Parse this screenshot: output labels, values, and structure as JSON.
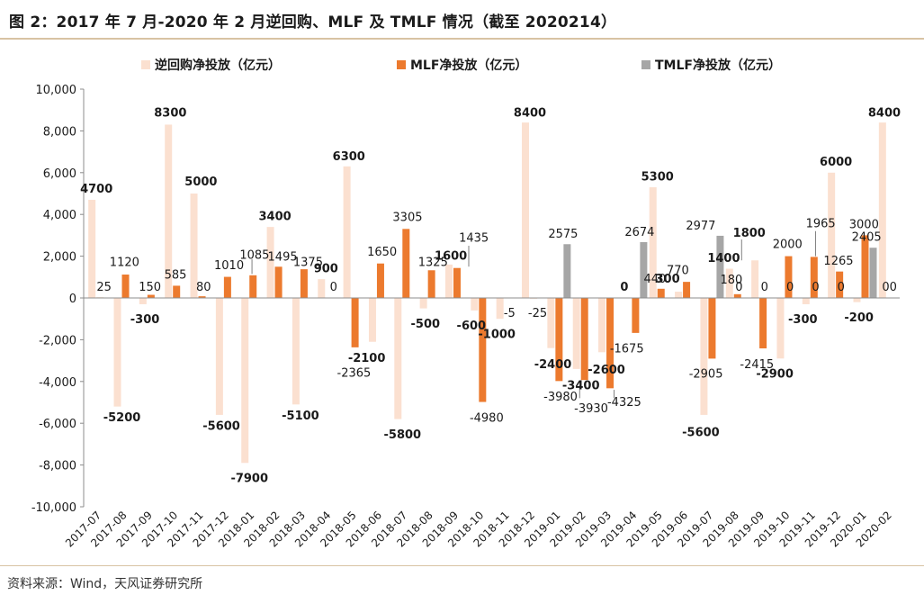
{
  "figure": {
    "title": "图 2：2017 年 7 月-2020 年 2 月逆回购、MLF 及 TMLF 情况（截至 2020214）",
    "source": "资料来源：Wind，天风证券研究所"
  },
  "chart_data": {
    "type": "bar",
    "categories": [
      "2017-07",
      "2017-08",
      "2017-09",
      "2017-10",
      "2017-11",
      "2017-12",
      "2018-01",
      "2018-02",
      "2018-03",
      "2018-04",
      "2018-05",
      "2018-06",
      "2018-07",
      "2018-08",
      "2018-09",
      "2018-10",
      "2018-11",
      "2018-12",
      "2019-01",
      "2019-02",
      "2019-03",
      "2019-04",
      "2019-05",
      "2019-06",
      "2019-07",
      "2019-08",
      "2019-09",
      "2019-10",
      "2019-11",
      "2019-12",
      "2020-01",
      "2020-02"
    ],
    "series": [
      {
        "name": "逆回购净投放（亿元）",
        "color": "#fbe0d0",
        "values": [
          4700,
          -5200,
          -300,
          8300,
          5000,
          -5600,
          -7900,
          3400,
          -5100,
          900,
          6300,
          -2100,
          -5800,
          -500,
          1600,
          -600,
          -1000,
          8400,
          -2400,
          -3400,
          -2600,
          0,
          5300,
          300,
          -5600,
          1400,
          1800,
          -2900,
          -300,
          6000,
          -200,
          8400
        ]
      },
      {
        "name": "MLF净投放（亿元）",
        "color": "#ec7a2e",
        "values": [
          25,
          1120,
          150,
          585,
          80,
          1010,
          1085,
          1495,
          1375,
          0,
          -2365,
          1650,
          3305,
          1325,
          1435,
          -4980,
          -5,
          -25,
          -3980,
          -3930,
          -4325,
          -1675,
          440,
          770,
          -2905,
          180,
          -2415,
          2000,
          1965,
          1265,
          3000,
          0
        ]
      },
      {
        "name": "TMLF净投放（亿元）",
        "color": "#a6a6a6",
        "values": [
          null,
          null,
          null,
          null,
          null,
          null,
          null,
          null,
          null,
          null,
          null,
          null,
          null,
          null,
          null,
          null,
          null,
          null,
          2575,
          null,
          null,
          2674,
          null,
          null,
          2977,
          null,
          0,
          0,
          0,
          0,
          2405,
          0
        ]
      }
    ],
    "ylim": [
      -10000,
      10000
    ],
    "yticks": [
      "10,000",
      "8,000",
      "6,000",
      "4,000",
      "2,000",
      "0",
      "-2,000",
      "-4,000",
      "-6,000",
      "-8,000",
      "-10,000"
    ],
    "legend_position": "top",
    "grid": false,
    "data_labels": [
      {
        "text": "4700",
        "bold": true,
        "cat": 0,
        "val": 5250
      },
      {
        "text": "25",
        "bold": false,
        "cat": 0.3,
        "val": 550
      },
      {
        "text": "1120",
        "bold": false,
        "cat": 1.1,
        "val": 1750
      },
      {
        "text": "-5200",
        "bold": true,
        "cat": 1,
        "val": -5700
      },
      {
        "text": "150",
        "bold": false,
        "cat": 2.1,
        "val": 550
      },
      {
        "text": "-300",
        "bold": true,
        "cat": 1.9,
        "val": -1000
      },
      {
        "text": "8300",
        "bold": true,
        "cat": 2.9,
        "val": 8900
      },
      {
        "text": "585",
        "bold": false,
        "cat": 3.1,
        "val": 1150
      },
      {
        "text": "5000",
        "bold": true,
        "cat": 4.1,
        "val": 5600
      },
      {
        "text": "80",
        "bold": false,
        "cat": 4.2,
        "val": 550
      },
      {
        "text": "1010",
        "bold": false,
        "cat": 5.2,
        "val": 1600
      },
      {
        "text": "-5600",
        "bold": true,
        "cat": 4.9,
        "val": -6100
      },
      {
        "text": "1085",
        "bold": false,
        "cat": 6.2,
        "val": 2100
      },
      {
        "text": "-7900",
        "bold": true,
        "cat": 6,
        "val": -8600
      },
      {
        "text": "3400",
        "bold": true,
        "cat": 7,
        "val": 3950
      },
      {
        "text": "1495",
        "bold": false,
        "cat": 7.3,
        "val": 2000
      },
      {
        "text": "1375",
        "bold": false,
        "cat": 8.3,
        "val": 1750
      },
      {
        "text": "-5100",
        "bold": true,
        "cat": 8,
        "val": -5600
      },
      {
        "text": "900",
        "bold": true,
        "cat": 9,
        "val": 1450
      },
      {
        "text": "0",
        "bold": false,
        "cat": 9.3,
        "val": 550
      },
      {
        "text": "6300",
        "bold": true,
        "cat": 9.9,
        "val": 6800
      },
      {
        "text": "-2365",
        "bold": false,
        "cat": 10.1,
        "val": -3550
      },
      {
        "text": "-2100",
        "bold": true,
        "cat": 10.6,
        "val": -2850
      },
      {
        "text": "1650",
        "bold": false,
        "cat": 11.2,
        "val": 2250
      },
      {
        "text": "3305",
        "bold": false,
        "cat": 12.2,
        "val": 3900
      },
      {
        "text": "-5800",
        "bold": true,
        "cat": 12,
        "val": -6500
      },
      {
        "text": "1325",
        "bold": false,
        "cat": 13.2,
        "val": 1750
      },
      {
        "text": "-500",
        "bold": true,
        "cat": 12.9,
        "val": -1200
      },
      {
        "text": "1600",
        "bold": true,
        "cat": 13.9,
        "val": 2050
      },
      {
        "text": "1435",
        "bold": false,
        "cat": 14.8,
        "val": 2900
      },
      {
        "text": "-600",
        "bold": true,
        "cat": 14.7,
        "val": -1300
      },
      {
        "text": "-1000",
        "bold": true,
        "cat": 15.7,
        "val": -1700
      },
      {
        "text": "-4980",
        "bold": false,
        "cat": 15.3,
        "val": -5720
      },
      {
        "text": "-5",
        "bold": false,
        "cat": 16.2,
        "val": -700
      },
      {
        "text": "8400",
        "bold": true,
        "cat": 17,
        "val": 8900
      },
      {
        "text": "-25",
        "bold": false,
        "cat": 17.3,
        "val": -700
      },
      {
        "text": "2575",
        "bold": false,
        "cat": 18.3,
        "val": 3100
      },
      {
        "text": "-2400",
        "bold": true,
        "cat": 17.9,
        "val": -3150
      },
      {
        "text": "-3980",
        "bold": false,
        "cat": 18.2,
        "val": -4700
      },
      {
        "text": "-3400",
        "bold": true,
        "cat": 19,
        "val": -4150
      },
      {
        "text": "-3930",
        "bold": false,
        "cat": 19.4,
        "val": -5250
      },
      {
        "text": "-2600",
        "bold": true,
        "cat": 20,
        "val": -3400
      },
      {
        "text": "-4325",
        "bold": false,
        "cat": 20.7,
        "val": -4950
      },
      {
        "text": "0",
        "bold": true,
        "cat": 20.7,
        "val": 550
      },
      {
        "text": "-1675",
        "bold": false,
        "cat": 20.8,
        "val": -2400
      },
      {
        "text": "2674",
        "bold": false,
        "cat": 21.3,
        "val": 3200
      },
      {
        "text": "5300",
        "bold": true,
        "cat": 22,
        "val": 5850
      },
      {
        "text": "440",
        "bold": false,
        "cat": 21.9,
        "val": 950
      },
      {
        "text": "300",
        "bold": true,
        "cat": 22.4,
        "val": 950
      },
      {
        "text": "770",
        "bold": false,
        "cat": 22.8,
        "val": 1350
      },
      {
        "text": "2977",
        "bold": false,
        "cat": 23.7,
        "val": 3500
      },
      {
        "text": "-5600",
        "bold": true,
        "cat": 23.7,
        "val": -6400
      },
      {
        "text": "-2905",
        "bold": false,
        "cat": 23.9,
        "val": -3600
      },
      {
        "text": "1400",
        "bold": true,
        "cat": 24.6,
        "val": 1950
      },
      {
        "text": "180",
        "bold": false,
        "cat": 24.9,
        "val": 900
      },
      {
        "text": "0",
        "bold": false,
        "cat": 25.2,
        "val": 550
      },
      {
        "text": "1800",
        "bold": true,
        "cat": 25.6,
        "val": 3150
      },
      {
        "text": "-2415",
        "bold": false,
        "cat": 25.9,
        "val": -3150
      },
      {
        "text": "0",
        "bold": false,
        "cat": 26.2,
        "val": 550
      },
      {
        "text": "-2900",
        "bold": true,
        "cat": 26.6,
        "val": -3600
      },
      {
        "text": "2000",
        "bold": false,
        "cat": 27.1,
        "val": 2600
      },
      {
        "text": "0",
        "bold": false,
        "cat": 27.2,
        "val": 550
      },
      {
        "text": "-300",
        "bold": true,
        "cat": 27.7,
        "val": -1000
      },
      {
        "text": "1965",
        "bold": false,
        "cat": 28.4,
        "val": 3600
      },
      {
        "text": "0",
        "bold": false,
        "cat": 28.2,
        "val": 550
      },
      {
        "text": "6000",
        "bold": true,
        "cat": 29,
        "val": 6550
      },
      {
        "text": "1265",
        "bold": false,
        "cat": 29.1,
        "val": 1800
      },
      {
        "text": "0",
        "bold": false,
        "cat": 29.2,
        "val": 550
      },
      {
        "text": "3000",
        "bold": false,
        "cat": 30.1,
        "val": 3550
      },
      {
        "text": "2405",
        "bold": false,
        "cat": 30.2,
        "val": 2950
      },
      {
        "text": "-200",
        "bold": true,
        "cat": 29.9,
        "val": -900
      },
      {
        "text": "8400",
        "bold": true,
        "cat": 30.9,
        "val": 8900
      },
      {
        "text": "00",
        "bold": false,
        "cat": 31.1,
        "val": 550
      }
    ],
    "leader_lines": [
      {
        "cat": 6.1,
        "from": 1150,
        "to": 1850
      },
      {
        "cat": 14.6,
        "from": 1500,
        "to": 2500
      },
      {
        "cat": 18.95,
        "from": -4200,
        "to": -4800
      },
      {
        "cat": 20.3,
        "from": -4400,
        "to": -4800
      },
      {
        "cat": 25.3,
        "from": 1800,
        "to": 2800
      },
      {
        "cat": 28.2,
        "from": 2000,
        "to": 3200
      }
    ]
  }
}
